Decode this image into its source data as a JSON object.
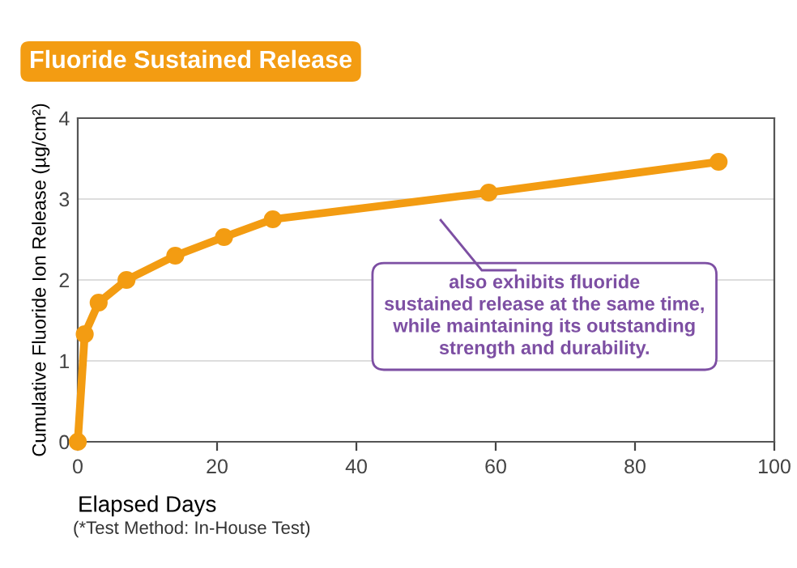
{
  "chart_data": {
    "type": "line",
    "title": "Fluoride Sustained Release",
    "xlabel": "Elapsed Days",
    "ylabel": "Cumulative Fluoride Ion Release (µg/cm²)",
    "x": [
      0,
      1,
      3,
      7,
      14,
      21,
      28,
      59,
      92
    ],
    "series": [
      {
        "color": "#f39c12",
        "values": [
          0,
          1.33,
          1.72,
          2.0,
          2.3,
          2.53,
          2.75,
          3.08,
          3.46
        ]
      }
    ],
    "xlim": [
      0,
      100
    ],
    "xticks": [
      0,
      20,
      40,
      60,
      80,
      100
    ],
    "ylim": [
      0,
      4
    ],
    "yticks": [
      0,
      1,
      2,
      3,
      4
    ],
    "grid": "y",
    "marker": "circle",
    "line_style": "solid",
    "legend": false,
    "annotations": [
      "also exhibits fluoride\nsustained release at the same time,\nwhile maintaining its outstanding\nstrength and durability.",
      "(*Test Method: In-House Test)"
    ]
  }
}
